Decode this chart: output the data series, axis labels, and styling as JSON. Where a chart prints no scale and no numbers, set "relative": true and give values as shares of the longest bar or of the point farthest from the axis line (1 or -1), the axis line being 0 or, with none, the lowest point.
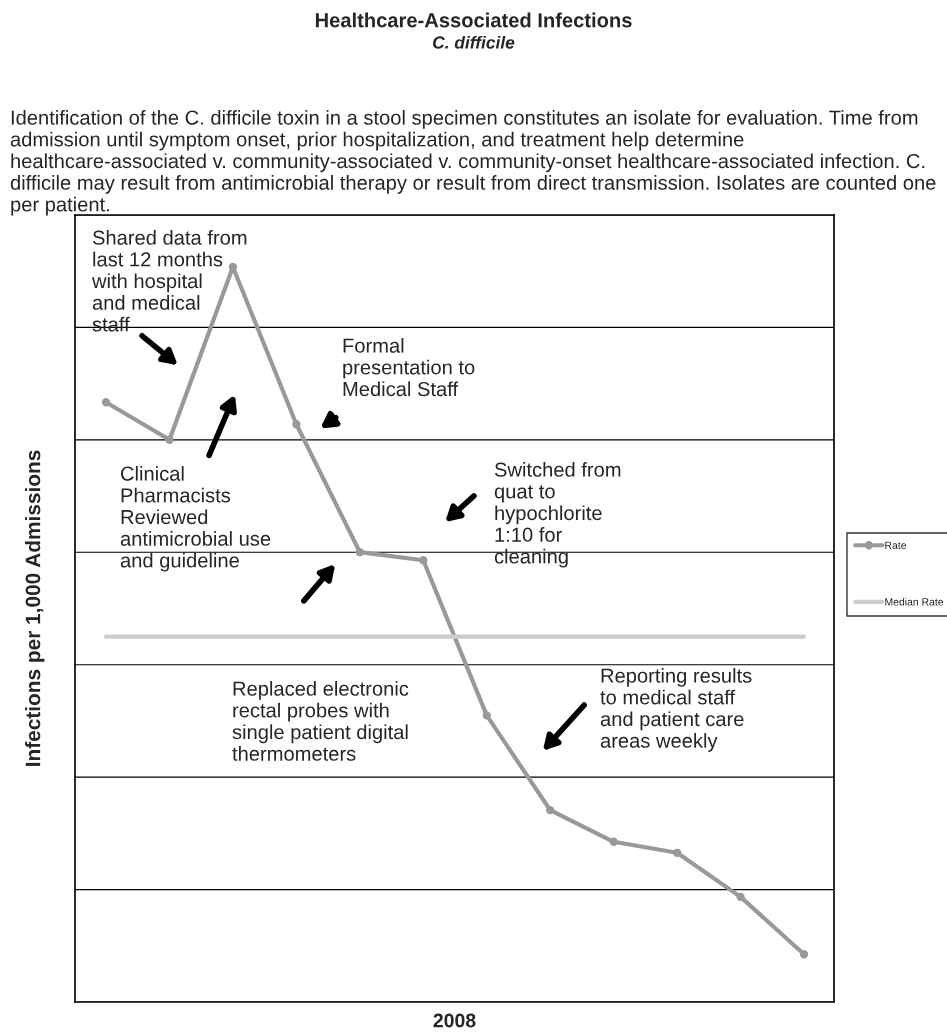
{
  "chart_data": {
    "type": "line",
    "title": "Healthcare-Associated Infections",
    "subtitle": "C. difficile",
    "xlabel": "2008",
    "ylabel": "Infections per 1,000 Admissions",
    "relative": true,
    "categories": [
      null,
      null,
      null,
      null,
      null,
      null,
      null,
      null,
      null,
      null,
      null,
      null
    ],
    "series": [
      {
        "name": "Rate",
        "color": "#999999",
        "marker": "circle",
        "values": [
          0.816,
          0.765,
          1,
          0.786,
          0.612,
          0.601,
          0.39,
          0.261,
          0.218,
          0.203,
          0.143,
          0.065
        ]
      },
      {
        "name": "Median Rate",
        "color": "#cccccc",
        "marker": "none",
        "values": [
          0.497,
          0.497,
          0.497,
          0.497,
          0.497,
          0.497,
          0.497,
          0.497,
          0.497,
          0.497,
          0.497,
          0.497
        ]
      }
    ],
    "grid": "y",
    "legend": "right",
    "line_style": "solid",
    "annotations": [
      "Identification of the C. difficile toxin in a stool specimen constitutes an isolate for evaluation. Time from admission until symptom onset, prior hospitalization, and treatment help determine healthcare-associated v. community-associated v. community-onset healthcare-associated infection. C. difficile may result from antimicrobial therapy or result from direct transmission. Isolates are counted one per patient.",
      "Shared data from\nlast 12 months\nwith hospital\nand medical\nstaff",
      "Formal\npresentation to\nMedical Staff",
      "Clinical\nPharmacists\nReviewed\nantimicrobial use\nand guideline",
      "Switched from\nquat to\nhypochlorite\n1:10 for\ncleaning",
      "Replaced electronic\nrectal probes with\nsingle patient digital\nthermometers",
      "Reporting results\nto medical staff\nand patient care\nareas weekly"
    ]
  }
}
